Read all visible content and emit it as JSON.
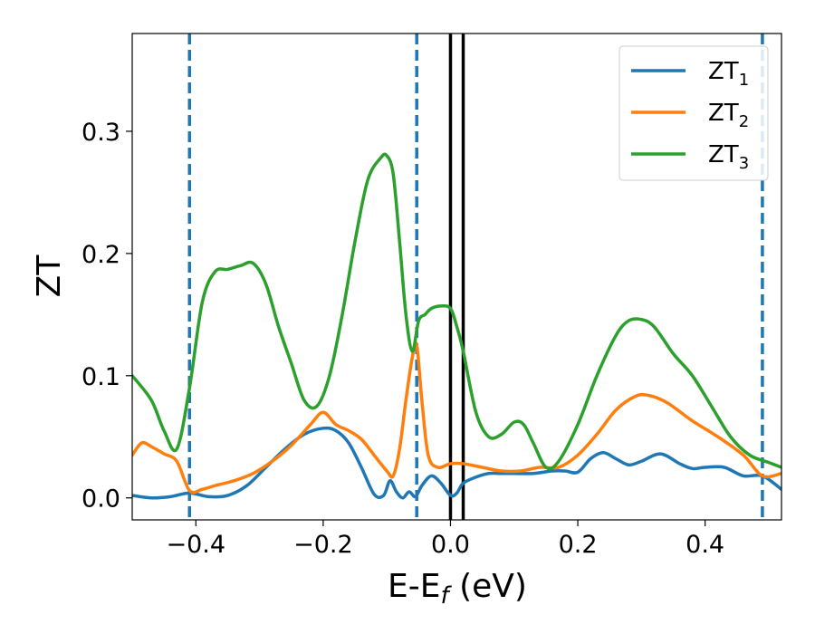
{
  "chart_data": {
    "type": "line",
    "xlabel_main": "E-E",
    "xlabel_sub": "f",
    "xlabel_tail": " (eV)",
    "ylabel": "ZT",
    "xlim": [
      -0.5,
      0.52
    ],
    "ylim": [
      -0.018,
      0.38
    ],
    "grid": false,
    "legend_position": "top-right",
    "xticks": [
      -0.4,
      -0.2,
      0.0,
      0.2,
      0.4
    ],
    "xtick_labels": [
      "−0.4",
      "−0.2",
      "0.0",
      "0.2",
      "0.4"
    ],
    "yticks": [
      0.0,
      0.1,
      0.2,
      0.3
    ],
    "ytick_labels": [
      "0.0",
      "0.1",
      "0.2",
      "0.3"
    ],
    "vlines_dashed": [
      -0.41,
      -0.053,
      0.49
    ],
    "vlines_dashed_color": "#1f77b4",
    "vlines_solid": [
      0.0,
      0.02
    ],
    "vlines_solid_color": "#000000",
    "series": [
      {
        "name_main": "ZT",
        "name_sub": "1",
        "color": "#1f77b4",
        "x": [
          -0.5,
          -0.47,
          -0.44,
          -0.41,
          -0.38,
          -0.35,
          -0.32,
          -0.29,
          -0.26,
          -0.23,
          -0.2,
          -0.18,
          -0.16,
          -0.14,
          -0.12,
          -0.105,
          -0.095,
          -0.085,
          -0.075,
          -0.065,
          -0.055,
          -0.045,
          -0.03,
          -0.015,
          0.0,
          0.01,
          0.02,
          0.04,
          0.06,
          0.08,
          0.1,
          0.13,
          0.16,
          0.18,
          0.2,
          0.22,
          0.24,
          0.26,
          0.28,
          0.3,
          0.33,
          0.36,
          0.38,
          0.4,
          0.43,
          0.46,
          0.49,
          0.52
        ],
        "y": [
          0.002,
          0.0,
          0.001,
          0.004,
          0.001,
          0.002,
          0.01,
          0.025,
          0.04,
          0.052,
          0.057,
          0.055,
          0.045,
          0.025,
          0.003,
          0.002,
          0.014,
          0.005,
          0.0,
          0.005,
          0.001,
          0.01,
          0.018,
          0.012,
          0.002,
          0.004,
          0.012,
          0.017,
          0.02,
          0.02,
          0.02,
          0.02,
          0.022,
          0.022,
          0.021,
          0.032,
          0.037,
          0.032,
          0.027,
          0.03,
          0.036,
          0.028,
          0.024,
          0.025,
          0.025,
          0.018,
          0.018,
          0.007
        ]
      },
      {
        "name_main": "ZT",
        "name_sub": "2",
        "color": "#ff7f0e",
        "x": [
          -0.5,
          -0.485,
          -0.47,
          -0.45,
          -0.43,
          -0.41,
          -0.39,
          -0.37,
          -0.34,
          -0.31,
          -0.28,
          -0.25,
          -0.22,
          -0.2,
          -0.18,
          -0.16,
          -0.14,
          -0.12,
          -0.1,
          -0.09,
          -0.08,
          -0.07,
          -0.06,
          -0.053,
          -0.045,
          -0.035,
          -0.02,
          0.0,
          0.02,
          0.05,
          0.08,
          0.11,
          0.14,
          0.17,
          0.2,
          0.23,
          0.26,
          0.29,
          0.31,
          0.34,
          0.38,
          0.42,
          0.46,
          0.49,
          0.52
        ],
        "y": [
          0.035,
          0.045,
          0.042,
          0.036,
          0.03,
          0.006,
          0.007,
          0.01,
          0.014,
          0.02,
          0.03,
          0.043,
          0.06,
          0.07,
          0.06,
          0.055,
          0.048,
          0.035,
          0.022,
          0.018,
          0.04,
          0.08,
          0.115,
          0.125,
          0.08,
          0.035,
          0.025,
          0.028,
          0.028,
          0.025,
          0.022,
          0.022,
          0.025,
          0.025,
          0.035,
          0.052,
          0.072,
          0.083,
          0.084,
          0.078,
          0.063,
          0.05,
          0.035,
          0.018,
          0.02
        ]
      },
      {
        "name_main": "ZT",
        "name_sub": "3",
        "color": "#2ca02c",
        "x": [
          -0.5,
          -0.47,
          -0.45,
          -0.43,
          -0.41,
          -0.39,
          -0.37,
          -0.35,
          -0.33,
          -0.31,
          -0.29,
          -0.27,
          -0.25,
          -0.23,
          -0.21,
          -0.19,
          -0.17,
          -0.15,
          -0.13,
          -0.11,
          -0.1,
          -0.09,
          -0.08,
          -0.07,
          -0.06,
          -0.05,
          -0.04,
          -0.03,
          -0.015,
          0.0,
          0.01,
          0.02,
          0.04,
          0.06,
          0.08,
          0.1,
          0.115,
          0.13,
          0.15,
          0.17,
          0.2,
          0.23,
          0.26,
          0.28,
          0.3,
          0.32,
          0.35,
          0.38,
          0.41,
          0.44,
          0.47,
          0.5,
          0.52
        ],
        "y": [
          0.1,
          0.08,
          0.055,
          0.04,
          0.09,
          0.16,
          0.185,
          0.187,
          0.19,
          0.192,
          0.175,
          0.14,
          0.11,
          0.08,
          0.075,
          0.1,
          0.15,
          0.21,
          0.26,
          0.278,
          0.28,
          0.265,
          0.21,
          0.15,
          0.12,
          0.145,
          0.15,
          0.155,
          0.157,
          0.155,
          0.14,
          0.12,
          0.07,
          0.05,
          0.052,
          0.062,
          0.06,
          0.045,
          0.025,
          0.03,
          0.06,
          0.1,
          0.133,
          0.145,
          0.146,
          0.14,
          0.118,
          0.1,
          0.075,
          0.05,
          0.035,
          0.029,
          0.025
        ]
      }
    ]
  }
}
